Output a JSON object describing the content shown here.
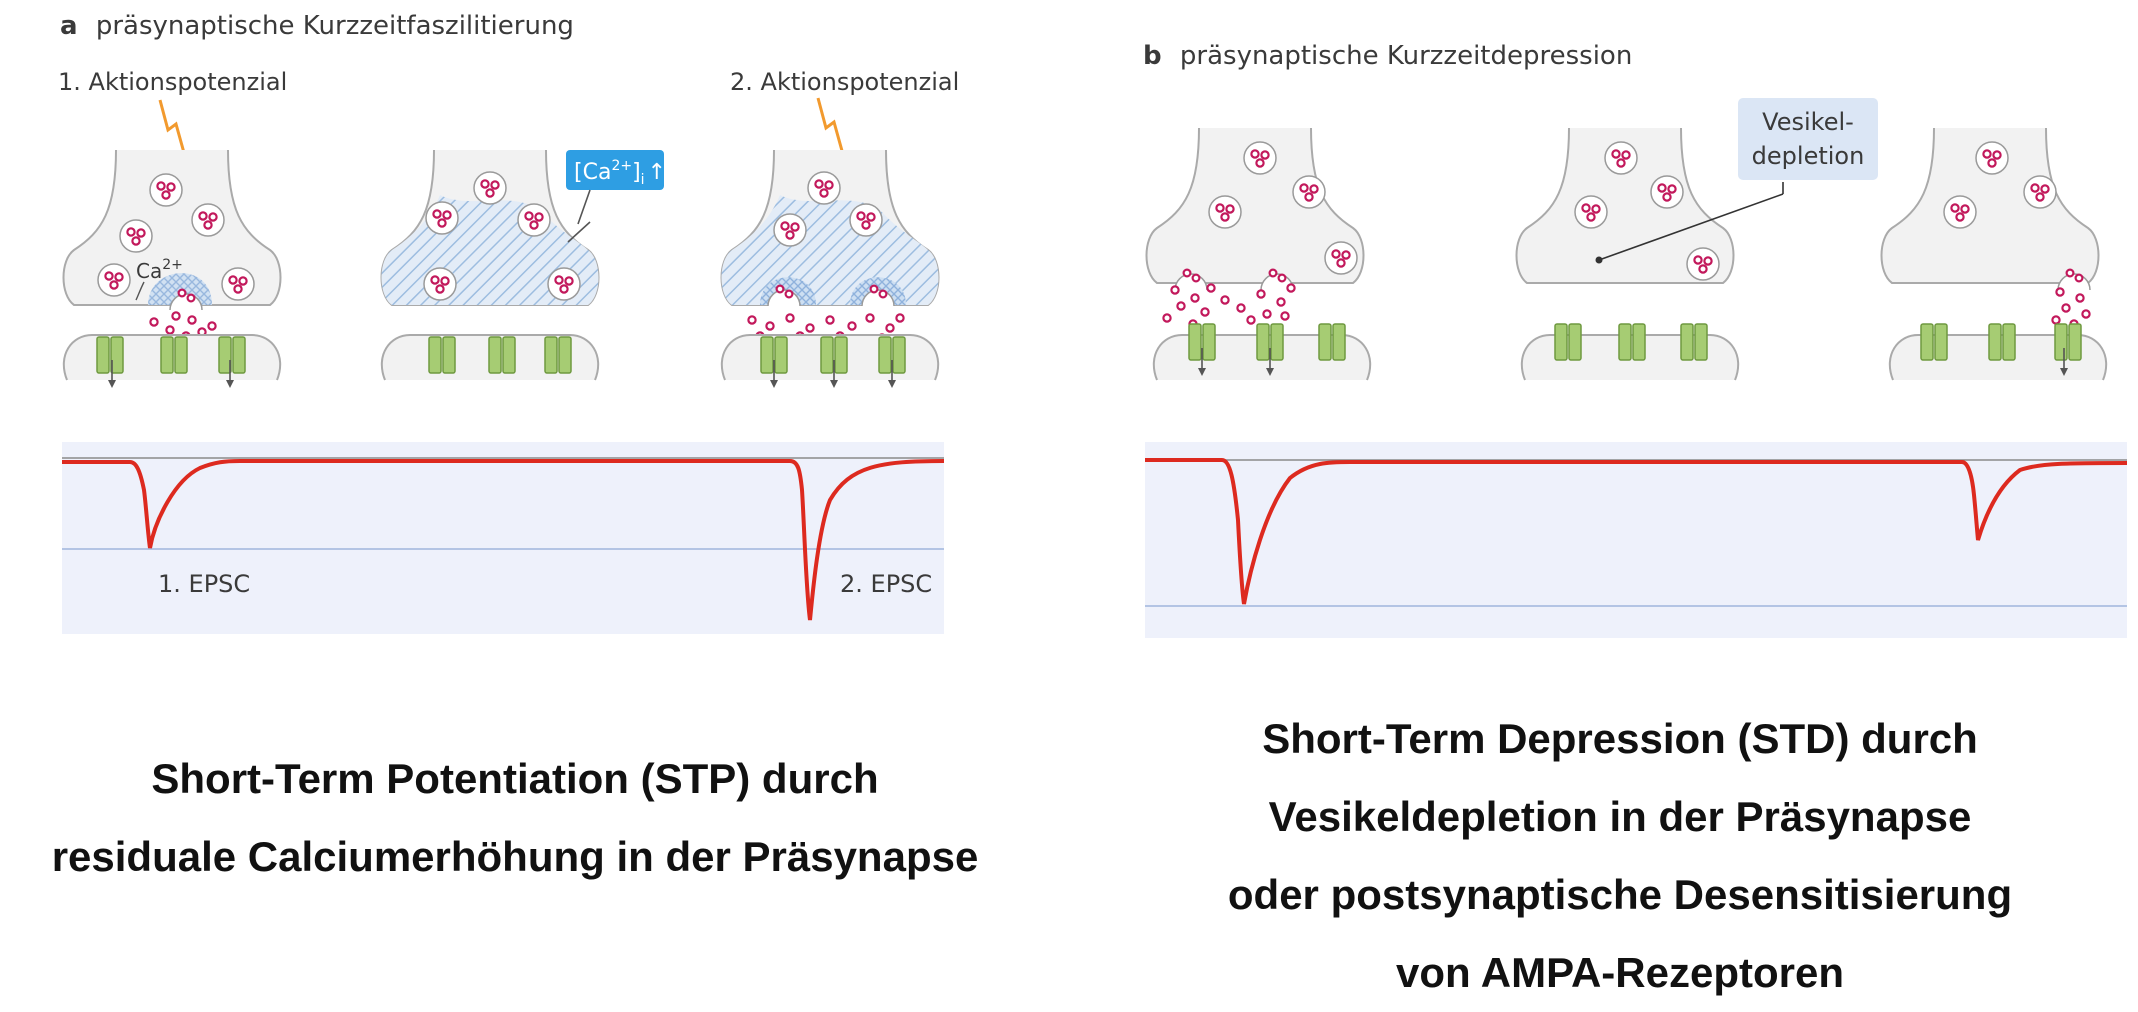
{
  "panel_a": {
    "letter": "a",
    "title": "präsynaptische Kurzzeitfaszilitierung",
    "ap1_label": "1. Aktionspotenzial",
    "ap2_label": "2. Aktionspotenzial",
    "ca_label": "Ca",
    "ca_sup": "2+",
    "callout": {
      "text": "[Ca",
      "sup": "2+",
      "sub": "i",
      "arrow": "↑"
    },
    "epsc1_label": "1. EPSC",
    "epsc2_label": "2. EPSC",
    "caption_lines": [
      "Short-Term Potentiation (STP) durch",
      "residuale Calciumerhöhung in der Präsynapse"
    ]
  },
  "panel_b": {
    "letter": "b",
    "title": "präsynaptische Kurzzeitdepression",
    "callout_line1": "Vesikel-",
    "callout_line2": "depletion",
    "caption_lines": [
      "Short-Term Depression (STD) durch",
      "Vesikeldepletion in der Präsynapse",
      "oder postsynaptische Desensitisierung",
      "von AMPA-Rezeptoren"
    ]
  },
  "colors": {
    "terminal_fill": "#f2f2f2",
    "terminal_stroke": "#aaaaaa",
    "vesicle_dot": "#c2185b",
    "receptor": "#a6cc73",
    "calcium_hatch": "#9dbde0",
    "callout_blue": "#2e9ee3",
    "callout_lightblue": "#dbe6f5",
    "trace_red": "#dd2a1f",
    "trace_bg": "#eef1fb",
    "lightning": "#f29a2e"
  }
}
